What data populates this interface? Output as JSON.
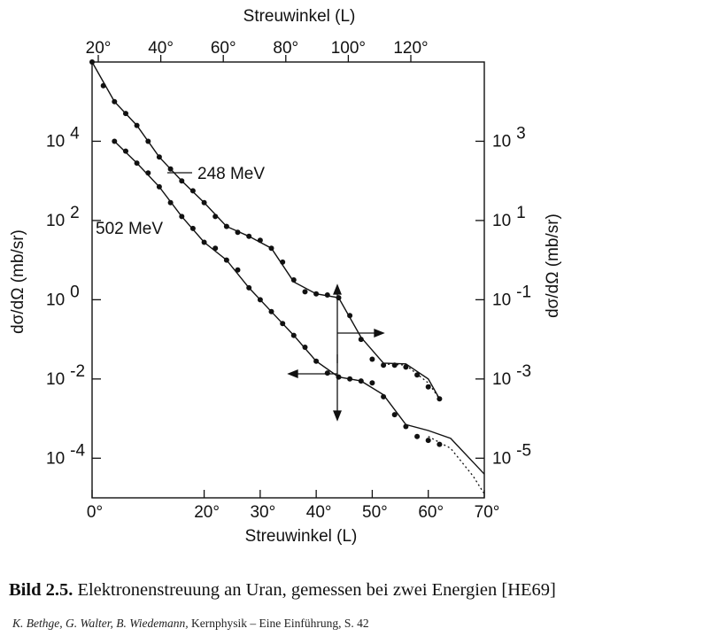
{
  "caption": {
    "label": "Bild 2.5.",
    "text": "Elektronenstreuung an Uran, gemessen bei zwei Energien [HE69]"
  },
  "credit": {
    "authors": "K. Bethge, G. Walter, B. Wiedemann,",
    "source": "Kernphysik – Eine Einführung, S. 42"
  },
  "chart_data": {
    "type": "line",
    "title": "",
    "top_axis": {
      "label": "Streuwinkel (L)",
      "ticks": [
        "20°",
        "40°",
        "60°",
        "80°",
        "100°",
        "120°"
      ],
      "values": [
        20,
        40,
        60,
        80,
        100,
        120
      ]
    },
    "bottom_axis": {
      "label": "Streuwinkel (L)",
      "ticks": [
        "0°",
        "20°",
        "30°",
        "40°",
        "50°",
        "60°",
        "70°"
      ],
      "values": [
        0,
        20,
        30,
        40,
        50,
        60,
        70
      ]
    },
    "left_axis": {
      "label": "dσ/dΩ (mb/sr)",
      "scale": "log",
      "ticks": [
        {
          "base": "10",
          "exp": "4",
          "value": 4
        },
        {
          "base": "10",
          "exp": "2",
          "value": 2
        },
        {
          "base": "10",
          "exp": "0",
          "value": 0
        },
        {
          "base": "10",
          "exp": "-2",
          "value": -2
        },
        {
          "base": "10",
          "exp": "-4",
          "value": -4
        }
      ]
    },
    "right_axis": {
      "label": "dσ/dΩ (mb/sr)",
      "scale": "log",
      "ticks": [
        {
          "base": "10",
          "exp": "3",
          "value": 4
        },
        {
          "base": "10",
          "exp": "1",
          "value": 2
        },
        {
          "base": "10",
          "exp": "-1",
          "value": 0
        },
        {
          "base": "10",
          "exp": "-3",
          "value": -2
        },
        {
          "base": "10",
          "exp": "-5",
          "value": -4
        }
      ]
    },
    "series": [
      {
        "name": "248 MeV",
        "note": "left axis values in log10",
        "points": [
          [
            0,
            6.0
          ],
          [
            2,
            5.4
          ],
          [
            4,
            5.0
          ],
          [
            6,
            4.7
          ],
          [
            8,
            4.4
          ],
          [
            10,
            4.0
          ],
          [
            12,
            3.6
          ],
          [
            14,
            3.3
          ],
          [
            16,
            3.0
          ],
          [
            18,
            2.75
          ],
          [
            20,
            2.45
          ],
          [
            22,
            2.1
          ],
          [
            24,
            1.85
          ],
          [
            26,
            1.7
          ],
          [
            28,
            1.6
          ],
          [
            30,
            1.5
          ],
          [
            32,
            1.3
          ],
          [
            34,
            0.95
          ],
          [
            36,
            0.5
          ],
          [
            38,
            0.2
          ],
          [
            40,
            0.15
          ],
          [
            42,
            0.12
          ],
          [
            44,
            0.05
          ],
          [
            46,
            -0.4
          ],
          [
            48,
            -1.0
          ],
          [
            50,
            -1.5
          ],
          [
            52,
            -1.65
          ],
          [
            54,
            -1.65
          ],
          [
            56,
            -1.7
          ],
          [
            58,
            -1.9
          ],
          [
            60,
            -2.2
          ],
          [
            62,
            -2.5
          ]
        ],
        "fit": [
          [
            0,
            6.0
          ],
          [
            4,
            5.0
          ],
          [
            8,
            4.4
          ],
          [
            12,
            3.6
          ],
          [
            16,
            3.0
          ],
          [
            20,
            2.45
          ],
          [
            24,
            1.85
          ],
          [
            28,
            1.6
          ],
          [
            32,
            1.3
          ],
          [
            36,
            0.45
          ],
          [
            40,
            0.15
          ],
          [
            44,
            0.05
          ],
          [
            48,
            -0.95
          ],
          [
            52,
            -1.6
          ],
          [
            56,
            -1.62
          ],
          [
            60,
            -2.0
          ],
          [
            62,
            -2.5
          ]
        ],
        "fit_dotted": [
          [
            52,
            -1.62
          ],
          [
            56,
            -1.65
          ],
          [
            60,
            -2.1
          ],
          [
            62,
            -2.5
          ]
        ]
      },
      {
        "name": "502 MeV",
        "note": "right axis values in log10 (mapped to left axis scale +1)",
        "points": [
          [
            4,
            4.0
          ],
          [
            6,
            3.75
          ],
          [
            8,
            3.45
          ],
          [
            10,
            3.2
          ],
          [
            12,
            2.85
          ],
          [
            14,
            2.45
          ],
          [
            16,
            2.1
          ],
          [
            18,
            1.8
          ],
          [
            20,
            1.45
          ],
          [
            22,
            1.3
          ],
          [
            24,
            1.0
          ],
          [
            26,
            0.75
          ],
          [
            28,
            0.3
          ],
          [
            30,
            0.0
          ],
          [
            32,
            -0.3
          ],
          [
            34,
            -0.6
          ],
          [
            36,
            -0.9
          ],
          [
            38,
            -1.2
          ],
          [
            40,
            -1.55
          ],
          [
            42,
            -1.85
          ],
          [
            44,
            -1.95
          ],
          [
            46,
            -2.0
          ],
          [
            48,
            -2.05
          ],
          [
            50,
            -2.1
          ],
          [
            52,
            -2.45
          ],
          [
            54,
            -2.9
          ],
          [
            56,
            -3.2
          ],
          [
            58,
            -3.45
          ],
          [
            60,
            -3.55
          ],
          [
            62,
            -3.65
          ]
        ],
        "fit": [
          [
            4,
            4.0
          ],
          [
            8,
            3.45
          ],
          [
            12,
            2.85
          ],
          [
            16,
            2.1
          ],
          [
            20,
            1.45
          ],
          [
            24,
            1.0
          ],
          [
            28,
            0.3
          ],
          [
            32,
            -0.3
          ],
          [
            36,
            -0.9
          ],
          [
            40,
            -1.55
          ],
          [
            44,
            -1.95
          ],
          [
            48,
            -2.05
          ],
          [
            52,
            -2.4
          ],
          [
            56,
            -3.15
          ],
          [
            60,
            -3.3
          ],
          [
            64,
            -3.5
          ],
          [
            68,
            -4.1
          ],
          [
            70,
            -4.4
          ]
        ],
        "fit_dotted": [
          [
            60,
            -3.45
          ],
          [
            64,
            -3.75
          ],
          [
            68,
            -4.45
          ],
          [
            70,
            -4.9
          ]
        ]
      }
    ],
    "xlim": [
      0,
      70
    ],
    "ylim_left_log10": [
      -5,
      6
    ]
  }
}
